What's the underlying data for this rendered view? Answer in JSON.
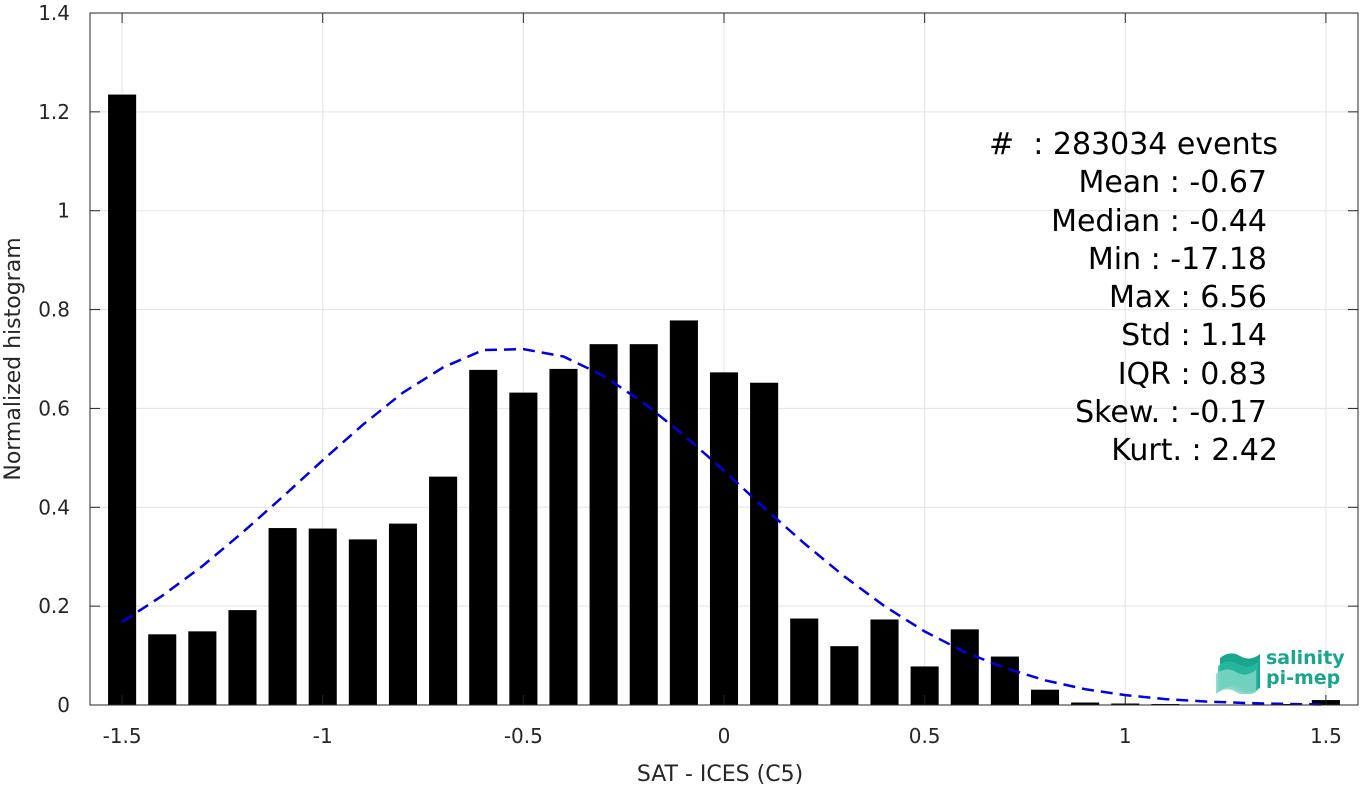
{
  "chart_data": {
    "type": "bar",
    "xlabel": "SAT - ICES (C5)",
    "ylabel": "Normalized histogram",
    "xlim": [
      -1.58,
      1.58
    ],
    "ylim": [
      0,
      1.4
    ],
    "xticks": [
      "-1.5",
      "-1",
      "-0.5",
      "0",
      "0.5",
      "1",
      "1.5"
    ],
    "xtick_values": [
      -1.5,
      -1,
      -0.5,
      0,
      0.5,
      1,
      1.5
    ],
    "yticks": [
      "0",
      "0.2",
      "0.4",
      "0.6",
      "0.8",
      "1",
      "1.2",
      "1.4"
    ],
    "ytick_values": [
      0,
      0.2,
      0.4,
      0.6,
      0.8,
      1,
      1.2,
      1.4
    ],
    "grid": true,
    "bar_color": "#000000",
    "bins": [
      -1.5,
      -1.4,
      -1.3,
      -1.2,
      -1.1,
      -1.0,
      -0.9,
      -0.8,
      -0.7,
      -0.6,
      -0.5,
      -0.4,
      -0.3,
      -0.2,
      -0.1,
      0.0,
      0.1,
      0.2,
      0.3,
      0.4,
      0.5,
      0.6,
      0.7,
      0.8,
      0.9,
      1.0,
      1.1,
      1.2,
      1.3,
      1.4,
      1.5
    ],
    "values": [
      1.235,
      0.143,
      0.149,
      0.192,
      0.358,
      0.357,
      0.335,
      0.367,
      0.462,
      0.678,
      0.632,
      0.68,
      0.73,
      0.73,
      0.778,
      0.673,
      0.652,
      0.175,
      0.119,
      0.173,
      0.078,
      0.153,
      0.098,
      0.031,
      0.005,
      0.003,
      0.002,
      0.001,
      0.001,
      0.002,
      0.01
    ],
    "fit_curve": {
      "style": "dashed",
      "color": "#0000e0",
      "x": [
        -1.5,
        -1.4,
        -1.3,
        -1.2,
        -1.1,
        -1.0,
        -0.9,
        -0.8,
        -0.7,
        -0.6,
        -0.5,
        -0.4,
        -0.3,
        -0.2,
        -0.1,
        0.0,
        0.1,
        0.2,
        0.3,
        0.4,
        0.5,
        0.6,
        0.7,
        0.8,
        0.9,
        1.0,
        1.1,
        1.2,
        1.3,
        1.4,
        1.5
      ],
      "y": [
        0.168,
        0.221,
        0.281,
        0.349,
        0.421,
        0.495,
        0.567,
        0.632,
        0.683,
        0.718,
        0.72,
        0.705,
        0.666,
        0.611,
        0.546,
        0.474,
        0.399,
        0.327,
        0.26,
        0.2,
        0.149,
        0.107,
        0.075,
        0.05,
        0.032,
        0.02,
        0.012,
        0.007,
        0.004,
        0.002,
        0.001
      ]
    }
  },
  "stats": {
    "events": "#  : 283034 events",
    "rows": [
      "Mean : -0.67",
      "Median : -0.44",
      "Min : -17.18",
      "Max : 6.56",
      "Std : 1.14",
      "IQR : 0.83",
      "Skew. : -0.17"
    ],
    "last": "Kurt. : 2.42"
  },
  "logo": {
    "line1": "salinity",
    "line2": "pi-mep",
    "colors": [
      "#1aa58e",
      "#2ab8a0",
      "#7fd6c6"
    ]
  }
}
